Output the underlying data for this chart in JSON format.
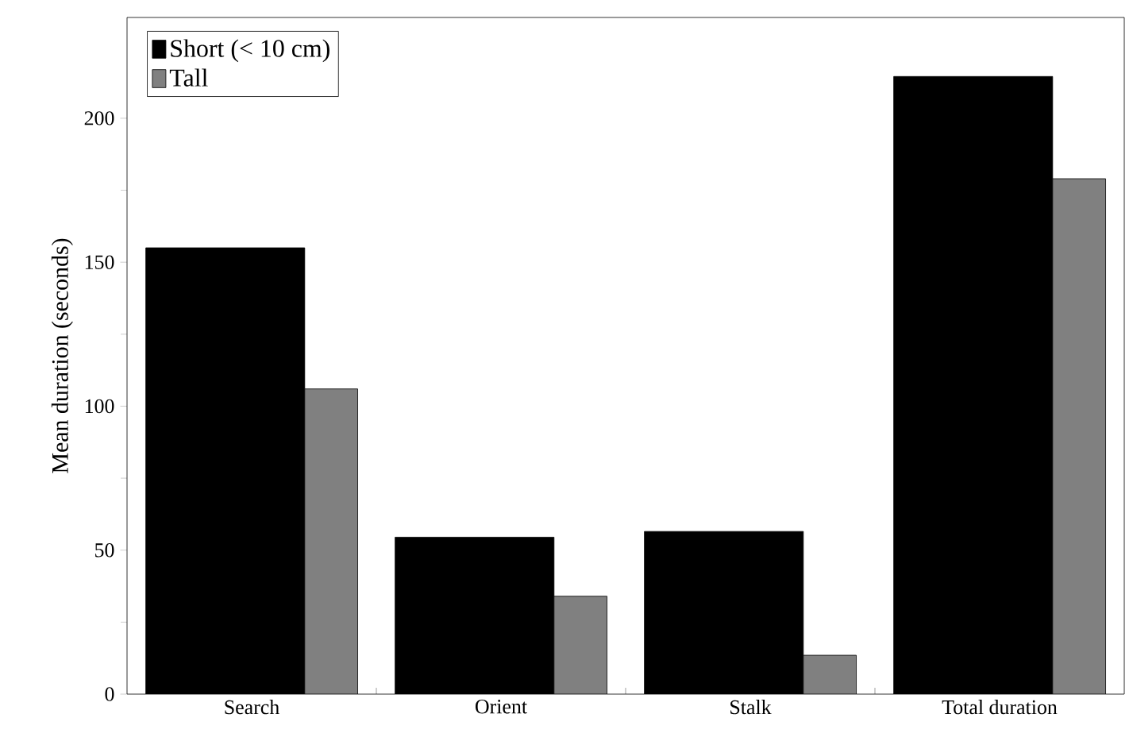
{
  "chart_data": {
    "type": "bar",
    "ylabel": "Mean duration (seconds)",
    "categories": [
      "Search",
      "Orient",
      "Stalk",
      "Total duration"
    ],
    "series": [
      {
        "name": "Short (< 10 cm)",
        "color": "#000000",
        "values": [
          155,
          54.5,
          56.5,
          214.5
        ]
      },
      {
        "name": "Tall",
        "color": "#808080",
        "values": [
          106,
          34,
          13.5,
          179
        ]
      }
    ],
    "ylim": [
      0,
      235
    ],
    "yticks": [
      0,
      50,
      100,
      150,
      200
    ],
    "legend": "top left",
    "grid": false
  }
}
